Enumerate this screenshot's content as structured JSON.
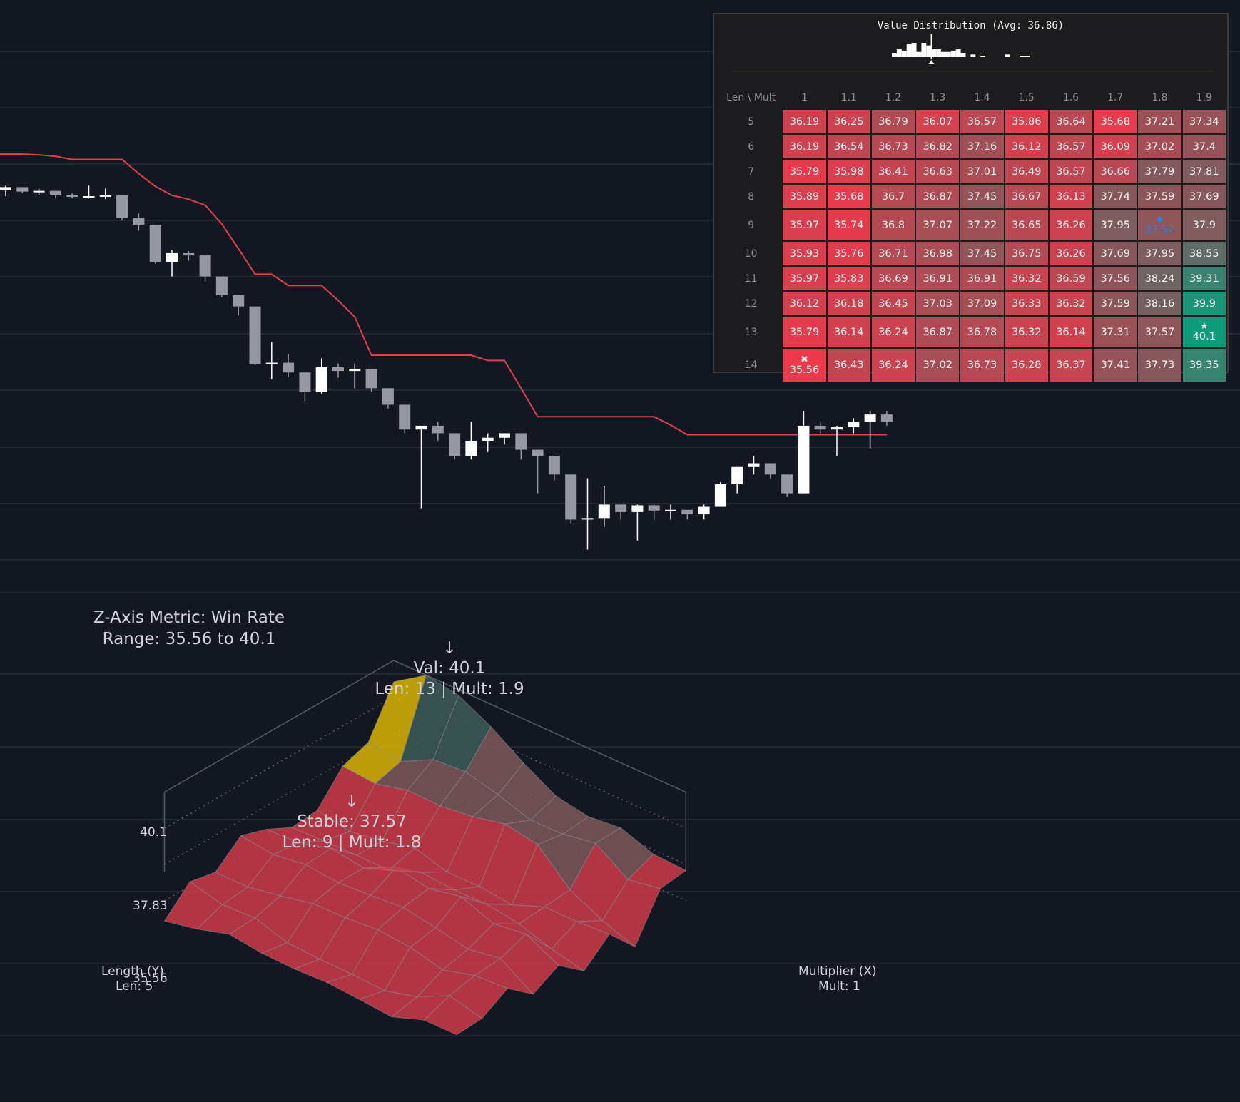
{
  "colors": {
    "background": "#131722",
    "grid": "#2a2e39",
    "line": "#e0404a",
    "candle_up": "#ffffff",
    "candle_down": "#9598a1",
    "surface_low": "#c83a48",
    "surface_mid": "#7a5658",
    "surface_high": "#3b5a55",
    "best": "#d4b106",
    "stable": "#1e88e5",
    "heat_low": "#ef3a4c",
    "heat_high": "#109b7a"
  },
  "distribution": {
    "title": "Value Distribution (Avg: 36.86)"
  },
  "heatmap": {
    "corner_label": "Len \\ Mult",
    "columns": [
      "1",
      "1.1",
      "1.2",
      "1.3",
      "1.4",
      "1.5",
      "1.6",
      "1.7",
      "1.8",
      "1.9"
    ],
    "rows": [
      {
        "len": "5",
        "values": [
          "36.19",
          "36.25",
          "36.79",
          "36.07",
          "36.57",
          "35.86",
          "36.64",
          "35.68",
          "37.21",
          "37.34"
        ]
      },
      {
        "len": "6",
        "values": [
          "36.19",
          "36.54",
          "36.73",
          "36.82",
          "37.16",
          "36.12",
          "36.57",
          "36.09",
          "37.02",
          "37.4"
        ]
      },
      {
        "len": "7",
        "values": [
          "35.79",
          "35.98",
          "36.41",
          "36.63",
          "37.01",
          "36.49",
          "36.57",
          "36.66",
          "37.79",
          "37.81"
        ]
      },
      {
        "len": "8",
        "values": [
          "35.89",
          "35.68",
          "36.7",
          "36.87",
          "37.45",
          "36.67",
          "36.13",
          "37.74",
          "37.59",
          "37.69"
        ]
      },
      {
        "len": "9",
        "values": [
          "35.97",
          "35.74",
          "36.8",
          "37.07",
          "37.22",
          "36.65",
          "36.26",
          "37.95",
          "37.57",
          "37.9"
        ]
      },
      {
        "len": "10",
        "values": [
          "35.93",
          "35.76",
          "36.71",
          "36.98",
          "37.45",
          "36.75",
          "36.26",
          "37.69",
          "37.95",
          "38.55"
        ]
      },
      {
        "len": "11",
        "values": [
          "35.97",
          "35.83",
          "36.69",
          "36.91",
          "36.91",
          "36.32",
          "36.59",
          "37.56",
          "38.24",
          "39.31"
        ]
      },
      {
        "len": "12",
        "values": [
          "36.12",
          "36.18",
          "36.45",
          "37.03",
          "37.09",
          "36.33",
          "36.32",
          "37.59",
          "38.16",
          "39.9"
        ]
      },
      {
        "len": "13",
        "values": [
          "35.79",
          "36.14",
          "36.24",
          "36.87",
          "36.78",
          "36.32",
          "36.14",
          "37.31",
          "37.57",
          "40.1"
        ]
      },
      {
        "len": "14",
        "values": [
          "35.56",
          "36.43",
          "36.24",
          "37.02",
          "36.73",
          "36.28",
          "36.37",
          "37.41",
          "37.73",
          "39.35"
        ]
      }
    ],
    "best_mark": "★",
    "worst_mark": "✖",
    "stable_mark": "●"
  },
  "surface": {
    "metric_label": "Z-Axis Metric: Win Rate",
    "range_label": "Range: 35.56 to 40.1",
    "best_arrow": "↓",
    "best_val_label": "Val: 40.1",
    "best_pos_label": "Len: 13 | Mult: 1.9",
    "stable_arrow": "↓",
    "stable_val_label": "Stable: 37.57",
    "stable_pos_label": "Len: 9 | Mult: 1.8",
    "z_ticks": [
      "40.1",
      "37.83",
      "35.56"
    ],
    "y_axis_label": "Length (Y)",
    "y_axis_value": "Len: 5",
    "x_axis_label": "Multiplier (X)",
    "x_axis_value": "Mult: 1"
  },
  "chart_data": {
    "type": "candlestick",
    "candles": [
      {
        "o": 100.0,
        "h": 100.6,
        "l": 99.2,
        "c": 100.4
      },
      {
        "o": 100.4,
        "h": 100.4,
        "l": 99.6,
        "c": 99.8
      },
      {
        "o": 99.8,
        "h": 100.2,
        "l": 99.4,
        "c": 99.9
      },
      {
        "o": 99.9,
        "h": 99.9,
        "l": 98.9,
        "c": 99.3
      },
      {
        "o": 99.3,
        "h": 99.6,
        "l": 98.9,
        "c": 99.1
      },
      {
        "o": 99.1,
        "h": 100.6,
        "l": 98.9,
        "c": 99.2
      },
      {
        "o": 99.2,
        "h": 100.2,
        "l": 98.8,
        "c": 99.3
      },
      {
        "o": 99.3,
        "h": 99.3,
        "l": 96.0,
        "c": 96.3
      },
      {
        "o": 96.3,
        "h": 96.9,
        "l": 94.6,
        "c": 95.4
      },
      {
        "o": 95.4,
        "h": 95.4,
        "l": 90.2,
        "c": 90.4
      },
      {
        "o": 90.4,
        "h": 92.0,
        "l": 88.5,
        "c": 91.6
      },
      {
        "o": 91.6,
        "h": 91.9,
        "l": 90.6,
        "c": 91.3
      },
      {
        "o": 91.3,
        "h": 91.3,
        "l": 87.8,
        "c": 88.5
      },
      {
        "o": 88.5,
        "h": 88.5,
        "l": 85.8,
        "c": 86.0
      },
      {
        "o": 86.0,
        "h": 86.0,
        "l": 83.3,
        "c": 84.5
      },
      {
        "o": 84.5,
        "h": 84.5,
        "l": 76.7,
        "c": 76.8
      },
      {
        "o": 76.8,
        "h": 79.7,
        "l": 74.8,
        "c": 77.0
      },
      {
        "o": 77.0,
        "h": 78.2,
        "l": 75.1,
        "c": 75.7
      },
      {
        "o": 75.7,
        "h": 75.7,
        "l": 71.9,
        "c": 73.1
      },
      {
        "o": 73.1,
        "h": 77.6,
        "l": 72.9,
        "c": 76.4
      },
      {
        "o": 76.4,
        "h": 76.9,
        "l": 75.0,
        "c": 75.9
      },
      {
        "o": 75.9,
        "h": 76.9,
        "l": 73.6,
        "c": 76.2
      },
      {
        "o": 76.2,
        "h": 76.2,
        "l": 73.1,
        "c": 73.6
      },
      {
        "o": 73.6,
        "h": 73.6,
        "l": 70.9,
        "c": 71.4
      },
      {
        "o": 71.4,
        "h": 71.4,
        "l": 67.6,
        "c": 68.1
      },
      {
        "o": 68.1,
        "h": 68.6,
        "l": 57.6,
        "c": 68.6
      },
      {
        "o": 68.6,
        "h": 69.1,
        "l": 66.6,
        "c": 67.6
      },
      {
        "o": 67.6,
        "h": 67.6,
        "l": 64.1,
        "c": 64.6
      },
      {
        "o": 64.6,
        "h": 69.1,
        "l": 64.1,
        "c": 66.6
      },
      {
        "o": 66.6,
        "h": 67.6,
        "l": 65.1,
        "c": 67.0
      },
      {
        "o": 67.0,
        "h": 67.6,
        "l": 66.1,
        "c": 67.6
      },
      {
        "o": 67.6,
        "h": 67.6,
        "l": 64.1,
        "c": 65.4
      },
      {
        "o": 65.4,
        "h": 65.4,
        "l": 59.6,
        "c": 64.6
      },
      {
        "o": 64.6,
        "h": 64.6,
        "l": 61.3,
        "c": 62.1
      },
      {
        "o": 62.1,
        "h": 62.1,
        "l": 55.6,
        "c": 56.1
      },
      {
        "o": 56.1,
        "h": 61.6,
        "l": 52.1,
        "c": 56.3
      },
      {
        "o": 56.3,
        "h": 60.6,
        "l": 55.1,
        "c": 58.1
      },
      {
        "o": 58.1,
        "h": 58.1,
        "l": 56.1,
        "c": 57.1
      },
      {
        "o": 57.1,
        "h": 58.1,
        "l": 53.3,
        "c": 58.0
      },
      {
        "o": 58.0,
        "h": 58.1,
        "l": 56.1,
        "c": 57.3
      },
      {
        "o": 57.3,
        "h": 58.1,
        "l": 56.1,
        "c": 57.4
      },
      {
        "o": 57.4,
        "h": 57.4,
        "l": 56.1,
        "c": 56.8
      },
      {
        "o": 56.8,
        "h": 58.1,
        "l": 56.1,
        "c": 57.8
      },
      {
        "o": 57.8,
        "h": 61.1,
        "l": 57.8,
        "c": 60.8
      },
      {
        "o": 60.8,
        "h": 63.1,
        "l": 59.6,
        "c": 63.1
      },
      {
        "o": 63.1,
        "h": 64.6,
        "l": 62.1,
        "c": 63.6
      },
      {
        "o": 63.6,
        "h": 63.6,
        "l": 61.6,
        "c": 62.1
      },
      {
        "o": 62.1,
        "h": 62.1,
        "l": 59.1,
        "c": 59.6
      },
      {
        "o": 59.6,
        "h": 70.6,
        "l": 59.6,
        "c": 68.6
      },
      {
        "o": 68.6,
        "h": 69.1,
        "l": 67.6,
        "c": 68.1
      },
      {
        "o": 68.1,
        "h": 68.6,
        "l": 64.6,
        "c": 68.4
      },
      {
        "o": 68.4,
        "h": 69.6,
        "l": 67.6,
        "c": 69.1
      },
      {
        "o": 69.1,
        "h": 70.6,
        "l": 65.6,
        "c": 70.1
      },
      {
        "o": 70.1,
        "h": 70.6,
        "l": 68.6,
        "c": 69.1
      }
    ],
    "line_values": [
      104.8,
      104.8,
      104.7,
      104.5,
      104.1,
      104.1,
      104.1,
      104.1,
      102.2,
      100.5,
      99.3,
      98.8,
      98.0,
      95.5,
      92.2,
      88.8,
      88.8,
      87.3,
      87.3,
      87.3,
      85.3,
      83.1,
      78.0,
      78.0,
      78.0,
      78.0,
      78.0,
      78.0,
      78.0,
      77.3,
      77.3,
      73.6,
      69.8,
      69.8,
      69.8,
      69.8,
      69.8,
      69.8,
      69.8,
      69.8,
      68.7,
      67.4,
      67.4,
      67.4,
      67.4,
      67.4,
      67.4,
      67.4,
      67.4,
      67.4,
      67.4,
      67.4,
      67.4,
      67.4
    ],
    "grid": true
  }
}
